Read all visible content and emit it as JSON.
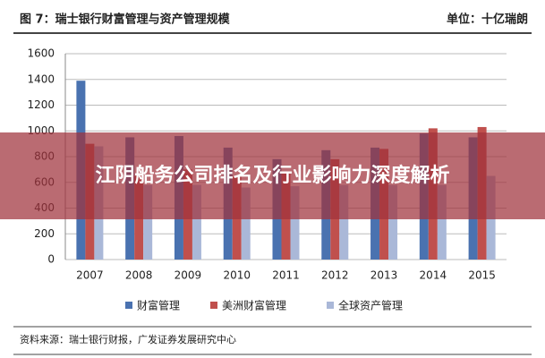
{
  "chart_data": {
    "type": "bar",
    "title": "图 7：瑞士银行财富管理与资产管理规模",
    "unit_label": "单位：十亿瑞朗",
    "source": "资料来源：瑞士银行财报，广发证券发展研究中心",
    "categories": [
      "2007",
      "2008",
      "2009",
      "2010",
      "2011",
      "2012",
      "2013",
      "2014",
      "2015"
    ],
    "series": [
      {
        "name": "财富管理",
        "color": "#4a72b0",
        "values": [
          1390,
          950,
          960,
          870,
          780,
          850,
          870,
          980,
          950
        ]
      },
      {
        "name": "美洲财富管理",
        "color": "#c0504d",
        "values": [
          900,
          650,
          700,
          650,
          680,
          780,
          860,
          1020,
          1030
        ]
      },
      {
        "name": "全球资产管理",
        "color": "#aab8d8",
        "values": [
          880,
          580,
          580,
          560,
          570,
          580,
          580,
          580,
          650
        ]
      }
    ],
    "ylim": [
      0,
      1600
    ],
    "yticks": [
      0,
      200,
      400,
      600,
      800,
      1000,
      1200,
      1400,
      1600
    ],
    "grid": true
  },
  "banner": {
    "title": "江阴船务公司排名及行业影响力深度解析"
  }
}
